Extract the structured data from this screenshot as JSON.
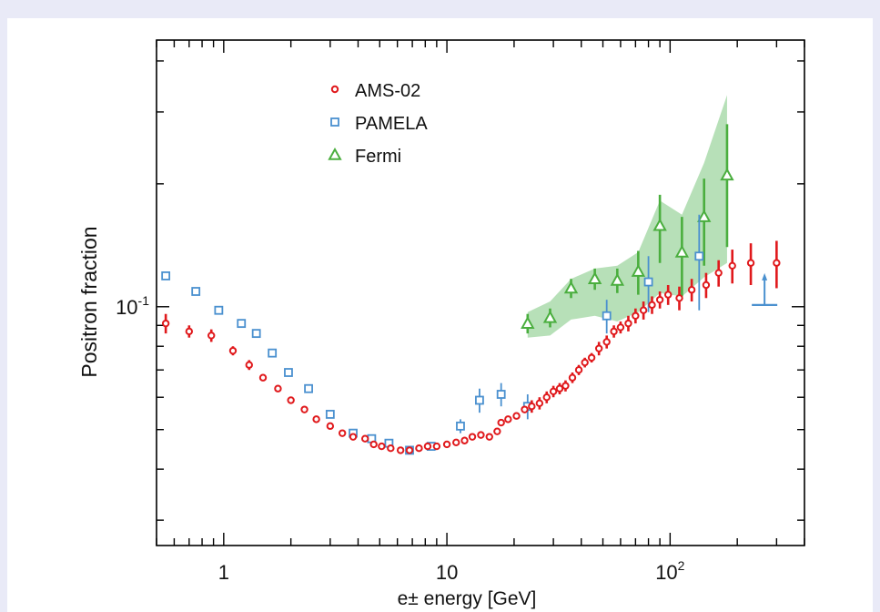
{
  "chart_data": {
    "type": "scatter",
    "xlabel": "e± energy [GeV]",
    "ylabel": "Positron fraction",
    "xscale": "log",
    "yscale": "log",
    "xlim": [
      0.5,
      400
    ],
    "ylim": [
      0.026,
      0.45
    ],
    "x_ticks": [
      {
        "value": 1,
        "label": "1"
      },
      {
        "value": 10,
        "label": "10"
      },
      {
        "value": 100,
        "label": "10",
        "sup": "2"
      }
    ],
    "y_ticks": [
      {
        "value": 0.1,
        "label": "10",
        "sup": "-1"
      }
    ],
    "legend_position": "top-left",
    "series": [
      {
        "name": "AMS-02",
        "marker": "circle",
        "color": "#e0191c",
        "points": [
          {
            "x": 0.55,
            "y": 0.091,
            "err": 0.005
          },
          {
            "x": 0.7,
            "y": 0.087,
            "err": 0.003
          },
          {
            "x": 0.88,
            "y": 0.085,
            "err": 0.003
          },
          {
            "x": 1.1,
            "y": 0.078,
            "err": 0.002
          },
          {
            "x": 1.3,
            "y": 0.072,
            "err": 0.002
          },
          {
            "x": 1.5,
            "y": 0.067
          },
          {
            "x": 1.75,
            "y": 0.063
          },
          {
            "x": 2.0,
            "y": 0.059
          },
          {
            "x": 2.3,
            "y": 0.056
          },
          {
            "x": 2.6,
            "y": 0.053
          },
          {
            "x": 3.0,
            "y": 0.051
          },
          {
            "x": 3.4,
            "y": 0.049
          },
          {
            "x": 3.8,
            "y": 0.048
          },
          {
            "x": 4.3,
            "y": 0.0475
          },
          {
            "x": 4.7,
            "y": 0.046
          },
          {
            "x": 5.1,
            "y": 0.0455
          },
          {
            "x": 5.6,
            "y": 0.045
          },
          {
            "x": 6.2,
            "y": 0.0445
          },
          {
            "x": 6.8,
            "y": 0.0445
          },
          {
            "x": 7.5,
            "y": 0.045
          },
          {
            "x": 8.2,
            "y": 0.0455
          },
          {
            "x": 9.0,
            "y": 0.0455
          },
          {
            "x": 10.0,
            "y": 0.046
          },
          {
            "x": 11.0,
            "y": 0.0465
          },
          {
            "x": 12.0,
            "y": 0.047
          },
          {
            "x": 13.0,
            "y": 0.048
          },
          {
            "x": 14.2,
            "y": 0.0485
          },
          {
            "x": 15.5,
            "y": 0.048
          },
          {
            "x": 16.8,
            "y": 0.0495
          },
          {
            "x": 17.5,
            "y": 0.052
          },
          {
            "x": 18.8,
            "y": 0.053
          },
          {
            "x": 20.5,
            "y": 0.054
          },
          {
            "x": 22.3,
            "y": 0.056
          },
          {
            "x": 24.0,
            "y": 0.057,
            "err": 0.002
          },
          {
            "x": 26.0,
            "y": 0.058,
            "err": 0.002
          },
          {
            "x": 28.0,
            "y": 0.06,
            "err": 0.002
          },
          {
            "x": 30.0,
            "y": 0.062,
            "err": 0.002
          },
          {
            "x": 32.0,
            "y": 0.063,
            "err": 0.002
          },
          {
            "x": 34.0,
            "y": 0.064,
            "err": 0.002
          },
          {
            "x": 36.5,
            "y": 0.067,
            "err": 0.002
          },
          {
            "x": 39.0,
            "y": 0.07,
            "err": 0.002
          },
          {
            "x": 41.5,
            "y": 0.073,
            "err": 0.002
          },
          {
            "x": 44.5,
            "y": 0.075,
            "err": 0.002
          },
          {
            "x": 48.0,
            "y": 0.079,
            "err": 0.003
          },
          {
            "x": 52.0,
            "y": 0.082,
            "err": 0.003
          },
          {
            "x": 56.0,
            "y": 0.087,
            "err": 0.003
          },
          {
            "x": 60.0,
            "y": 0.089,
            "err": 0.003
          },
          {
            "x": 65.0,
            "y": 0.091,
            "err": 0.004
          },
          {
            "x": 70.0,
            "y": 0.095,
            "err": 0.004
          },
          {
            "x": 76.0,
            "y": 0.098,
            "err": 0.005
          },
          {
            "x": 83.0,
            "y": 0.101,
            "err": 0.005
          },
          {
            "x": 90.0,
            "y": 0.104,
            "err": 0.005
          },
          {
            "x": 98.0,
            "y": 0.107,
            "err": 0.006
          },
          {
            "x": 110.0,
            "y": 0.105,
            "err": 0.007
          },
          {
            "x": 125.0,
            "y": 0.11,
            "err": 0.007
          },
          {
            "x": 145.0,
            "y": 0.113,
            "err": 0.008
          },
          {
            "x": 165.0,
            "y": 0.121,
            "err": 0.009
          },
          {
            "x": 190.0,
            "y": 0.126,
            "err": 0.012
          },
          {
            "x": 230.0,
            "y": 0.128,
            "err": 0.015
          },
          {
            "x": 300.0,
            "y": 0.128,
            "err": 0.017
          }
        ]
      },
      {
        "name": "PAMELA",
        "marker": "square",
        "color": "#4a90cf",
        "points": [
          {
            "x": 0.55,
            "y": 0.119
          },
          {
            "x": 0.75,
            "y": 0.109
          },
          {
            "x": 0.95,
            "y": 0.098
          },
          {
            "x": 1.2,
            "y": 0.091
          },
          {
            "x": 1.4,
            "y": 0.086
          },
          {
            "x": 1.65,
            "y": 0.077
          },
          {
            "x": 1.95,
            "y": 0.069
          },
          {
            "x": 2.4,
            "y": 0.063
          },
          {
            "x": 3.0,
            "y": 0.0545
          },
          {
            "x": 3.8,
            "y": 0.049
          },
          {
            "x": 4.6,
            "y": 0.0475
          },
          {
            "x": 5.5,
            "y": 0.0463
          },
          {
            "x": 6.8,
            "y": 0.0445
          },
          {
            "x": 8.5,
            "y": 0.0455
          },
          {
            "x": 11.5,
            "y": 0.051,
            "err": 0.002
          },
          {
            "x": 14.0,
            "y": 0.059,
            "err": 0.004
          },
          {
            "x": 17.5,
            "y": 0.061,
            "err": 0.004
          },
          {
            "x": 23.0,
            "y": 0.057,
            "err": 0.004
          },
          {
            "x": 52.0,
            "y": 0.095,
            "err": 0.009
          },
          {
            "x": 80.0,
            "y": 0.115,
            "err": 0.018
          },
          {
            "x": 135.0,
            "y": 0.133,
            "err": 0.035
          }
        ]
      },
      {
        "name": "Fermi",
        "marker": "triangle",
        "color": "#4aae3e",
        "points": [
          {
            "x": 23.0,
            "y": 0.091,
            "err": 0.005
          },
          {
            "x": 29.0,
            "y": 0.094,
            "err": 0.005
          },
          {
            "x": 36.0,
            "y": 0.111,
            "err": 0.006
          },
          {
            "x": 46.0,
            "y": 0.117,
            "err": 0.007
          },
          {
            "x": 58.0,
            "y": 0.116,
            "err": 0.008
          },
          {
            "x": 72.0,
            "y": 0.122,
            "err": 0.015
          },
          {
            "x": 90.0,
            "y": 0.158,
            "err": 0.03
          },
          {
            "x": 113.0,
            "y": 0.136,
            "err": 0.03
          },
          {
            "x": 142.0,
            "y": 0.166,
            "err": 0.04
          },
          {
            "x": 180.0,
            "y": 0.21,
            "err": 0.07
          }
        ]
      }
    ],
    "fermi_band": {
      "x": [
        23,
        29,
        36,
        46,
        58,
        72,
        90,
        113,
        142,
        180
      ],
      "lower": [
        0.084,
        0.085,
        0.093,
        0.095,
        0.092,
        0.097,
        0.108,
        0.106,
        0.118,
        0.128
      ],
      "upper": [
        0.097,
        0.103,
        0.117,
        0.124,
        0.126,
        0.136,
        0.182,
        0.168,
        0.225,
        0.33
      ]
    },
    "pamela_upper_limit": {
      "x": 265,
      "y": 0.101
    }
  }
}
